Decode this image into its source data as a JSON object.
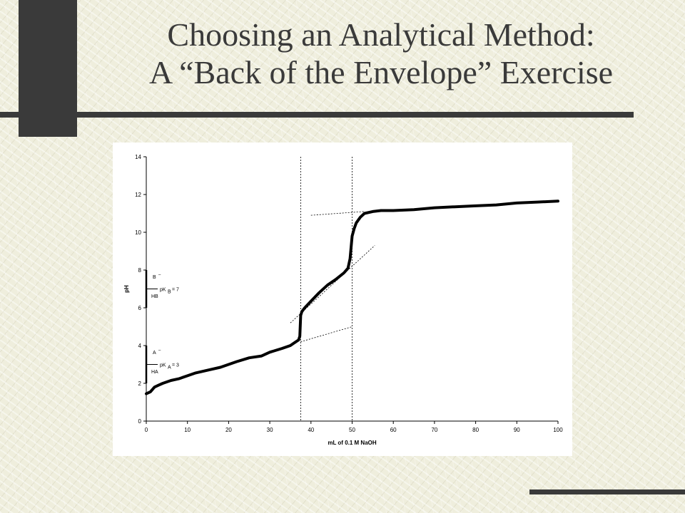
{
  "slide": {
    "title_line1": "Choosing an Analytical Method:",
    "title_line2": "A “Back of the Envelope” Exercise"
  },
  "chart_data": {
    "type": "line",
    "title": "",
    "xlabel": "mL of 0.1 M NaOH",
    "ylabel": "pH",
    "xlim": [
      0,
      100
    ],
    "ylim": [
      0,
      14
    ],
    "x_ticks": [
      0,
      10,
      20,
      30,
      40,
      50,
      60,
      70,
      80,
      90,
      100
    ],
    "y_ticks": [
      0,
      2,
      4,
      6,
      8,
      10,
      12,
      14
    ],
    "grid": false,
    "series": [
      {
        "x": [
          0,
          1,
          2,
          3,
          4,
          6,
          8,
          10,
          12,
          15,
          18,
          20,
          22,
          25,
          28,
          30,
          33,
          35,
          36,
          37,
          37.3,
          37.5,
          37.8,
          38.5,
          40,
          42,
          44,
          46,
          48,
          49,
          49.5,
          50,
          50.5,
          51,
          52,
          53,
          55,
          57,
          60,
          65,
          70,
          75,
          80,
          85,
          90,
          95,
          100
        ],
        "y": [
          1.45,
          1.55,
          1.8,
          1.9,
          2.0,
          2.15,
          2.25,
          2.4,
          2.55,
          2.7,
          2.85,
          3.0,
          3.15,
          3.35,
          3.45,
          3.65,
          3.85,
          4.0,
          4.15,
          4.3,
          4.5,
          5.6,
          5.8,
          6.0,
          6.35,
          6.8,
          7.2,
          7.5,
          7.85,
          8.1,
          8.6,
          9.8,
          10.2,
          10.5,
          10.8,
          11.0,
          11.1,
          11.15,
          11.15,
          11.2,
          11.3,
          11.35,
          11.4,
          11.45,
          11.55,
          11.6,
          11.65
        ]
      }
    ],
    "tangent_lines": [
      {
        "x": [
          37.5,
          50
        ],
        "y": [
          4.2,
          5.0
        ]
      },
      {
        "x": [
          35,
          55.5
        ],
        "y": [
          5.2,
          9.3
        ]
      },
      {
        "x": [
          40,
          53
        ],
        "y": [
          10.9,
          11.1
        ]
      }
    ],
    "vertical_markers": [
      37.5,
      50
    ],
    "annotations": [
      {
        "ymin": 6,
        "ymax": 8,
        "upper": "B",
        "upper_sup": "–",
        "mid": "pK",
        "mid_sub": "B",
        "mid_rest": " = 7",
        "lower": "HB"
      },
      {
        "ymin": 2,
        "ymax": 4,
        "upper": "A",
        "upper_sup": "–",
        "mid": "pK",
        "mid_sub": "A",
        "mid_rest": " = 3",
        "lower": "HA"
      }
    ]
  }
}
